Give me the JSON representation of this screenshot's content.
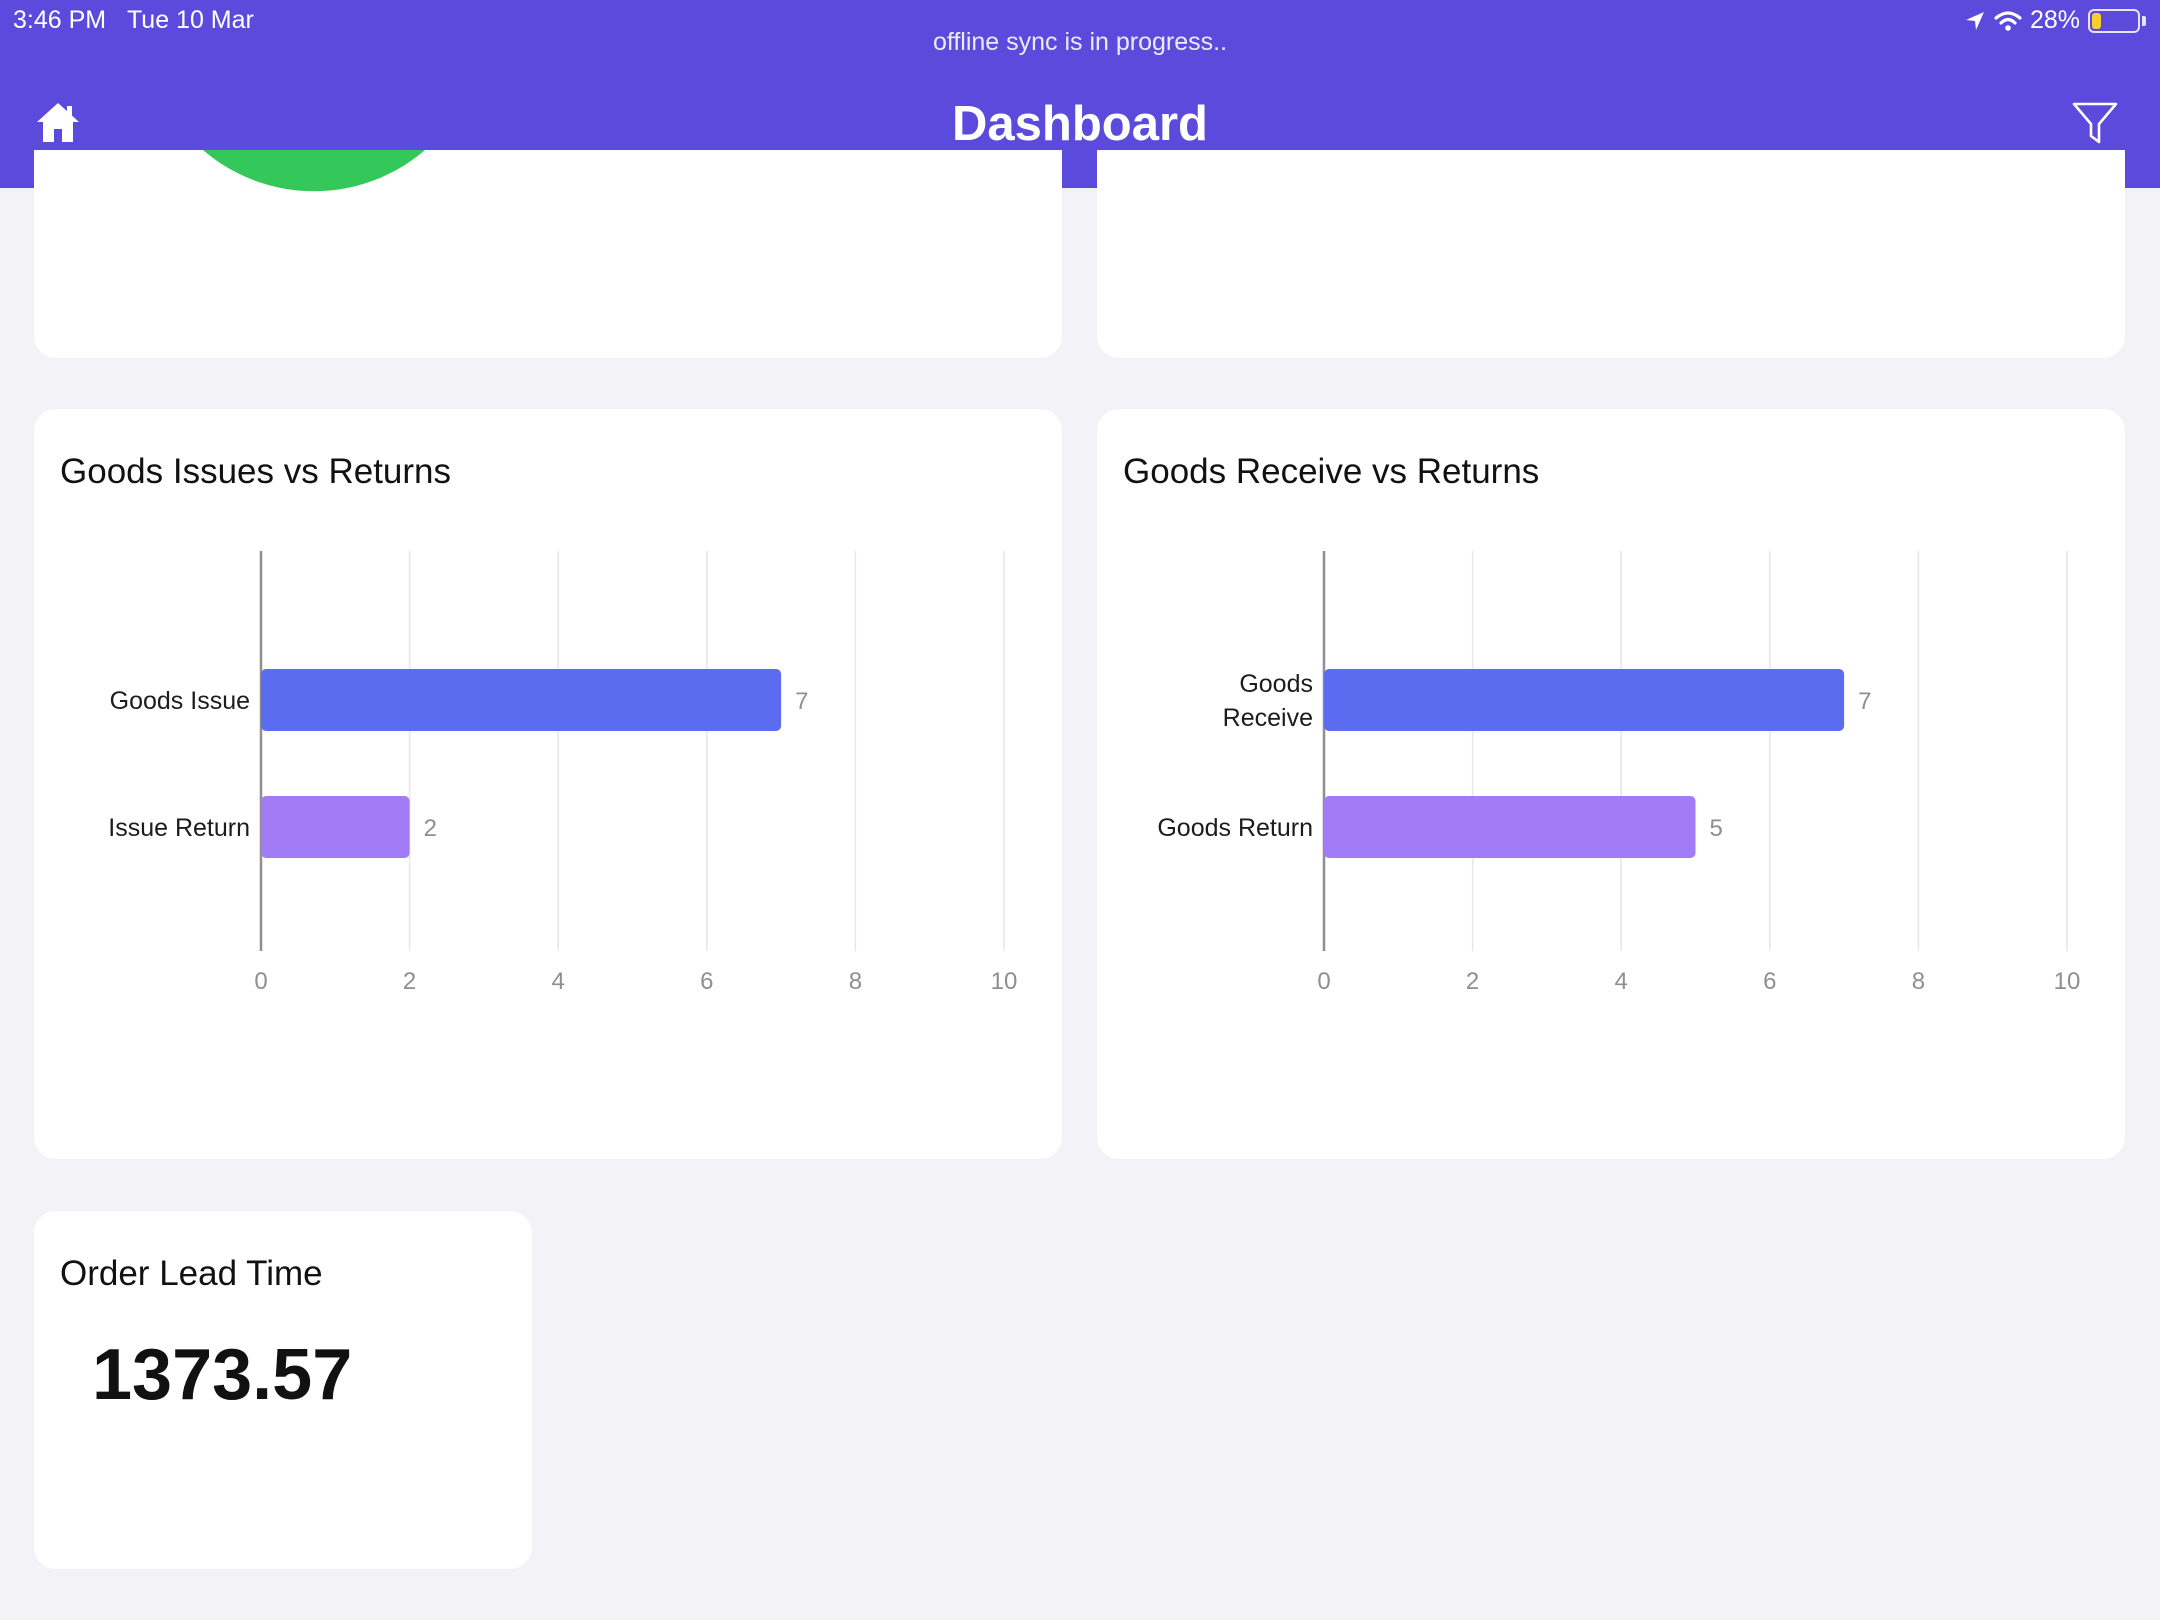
{
  "status_bar": {
    "time": "3:46 PM",
    "date": "Tue 10 Mar",
    "battery": "28%",
    "battery_level": 0.28
  },
  "header": {
    "sync_message": "offline sync is in progress..",
    "title": "Dashboard"
  },
  "colors": {
    "header": "#5c4add",
    "bar_primary": "#5b6cf0",
    "bar_secondary": "#a17cf6",
    "pie_green": "#34c759"
  },
  "cards": {
    "goods_issues": {
      "title": "Goods Issues vs Returns"
    },
    "goods_receive": {
      "title": "Goods Receive vs Returns"
    },
    "order_lead_time": {
      "title": "Order Lead Time",
      "value": "1373.57"
    }
  },
  "chart_data": [
    {
      "type": "bar",
      "orientation": "horizontal",
      "title": "Goods Issues vs Returns",
      "categories": [
        "Goods Issue",
        "Issue Return"
      ],
      "values": [
        7,
        2
      ],
      "xlim": [
        0,
        10
      ],
      "ticks": [
        "0",
        "2",
        "4",
        "6",
        "8",
        "10"
      ],
      "grid": true
    },
    {
      "type": "bar",
      "orientation": "horizontal",
      "title": "Goods Receive vs Returns",
      "categories": [
        "Goods Receive",
        "Goods Return"
      ],
      "values": [
        7,
        5
      ],
      "xlim": [
        0,
        10
      ],
      "ticks": [
        "0",
        "2",
        "4",
        "6",
        "8",
        "10"
      ],
      "grid": true
    }
  ]
}
